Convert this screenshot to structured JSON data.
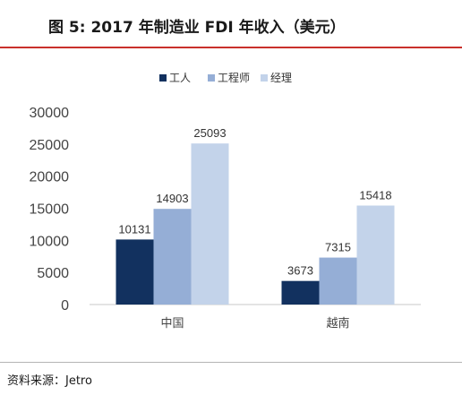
{
  "figure": {
    "title": "图  5:    2017 年制造业 FDI 年收入（美元）",
    "source": "资料来源：Jetro"
  },
  "chart_data": {
    "type": "bar",
    "categories": [
      "中国",
      "越南"
    ],
    "series": [
      {
        "name": "工人",
        "values": [
          10131,
          3673
        ],
        "color": "#12315f"
      },
      {
        "name": "工程师",
        "values": [
          14903,
          7315
        ],
        "color": "#95aed6"
      },
      {
        "name": "经理",
        "values": [
          25093,
          15418
        ],
        "color": "#c3d3ea"
      }
    ],
    "ylim": [
      0,
      30000
    ],
    "yticks": [
      0,
      5000,
      10000,
      15000,
      20000,
      25000,
      30000
    ],
    "grid": false,
    "legend": "top-left",
    "data_labels": true,
    "xlabel": "",
    "ylabel": ""
  }
}
